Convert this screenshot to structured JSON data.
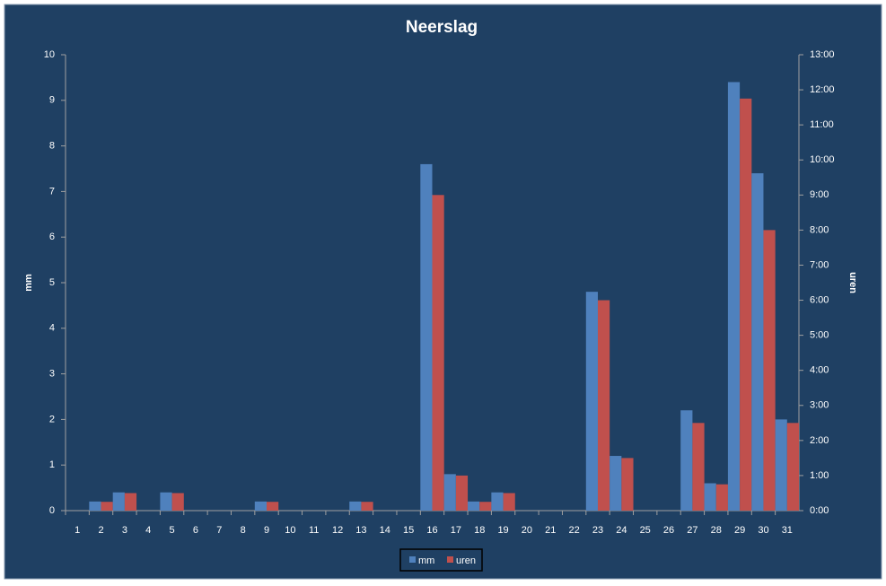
{
  "chart_data": {
    "type": "bar",
    "title": "Neerslag",
    "y_label": "mm",
    "y2_label": "uren",
    "categories": [
      "1",
      "2",
      "3",
      "4",
      "5",
      "6",
      "7",
      "8",
      "9",
      "10",
      "11",
      "12",
      "13",
      "14",
      "15",
      "16",
      "17",
      "18",
      "19",
      "20",
      "21",
      "22",
      "23",
      "24",
      "25",
      "26",
      "27",
      "28",
      "29",
      "30",
      "31"
    ],
    "series": [
      {
        "name": "mm",
        "color": "#4f81bd",
        "values": [
          0,
          0.2,
          0.4,
          0,
          0.4,
          0,
          0,
          0,
          0.2,
          0,
          0,
          0,
          0.2,
          0,
          0,
          7.6,
          0.8,
          0.2,
          0.4,
          0,
          0,
          0,
          4.8,
          1.2,
          0,
          0,
          2.2,
          0.6,
          9.4,
          7.4,
          2.0
        ]
      },
      {
        "name": "uren",
        "color": "#c0504d",
        "axis": "y2",
        "values": [
          0,
          0.25,
          0.5,
          0,
          0.5,
          0,
          0,
          0,
          0.25,
          0,
          0,
          0,
          0.25,
          0,
          0,
          9,
          1,
          0.25,
          0.5,
          0,
          0,
          0,
          6,
          1.5,
          0,
          0,
          2.5,
          0.75,
          11.75,
          8,
          2.5
        ]
      }
    ],
    "ylim": [
      0,
      10
    ],
    "yticks": [
      0,
      1,
      2,
      3,
      4,
      5,
      6,
      7,
      8,
      9,
      10
    ],
    "y2lim": [
      0,
      13
    ],
    "y2ticks": [
      {
        "value": 0,
        "label": "0:00"
      },
      {
        "value": 1,
        "label": "1:00"
      },
      {
        "value": 2,
        "label": "2:00"
      },
      {
        "value": 3,
        "label": "3:00"
      },
      {
        "value": 4,
        "label": "4:00"
      },
      {
        "value": 5,
        "label": "5:00"
      },
      {
        "value": 6,
        "label": "6:00"
      },
      {
        "value": 7,
        "label": "7:00"
      },
      {
        "value": 8,
        "label": "8:00"
      },
      {
        "value": 9,
        "label": "9:00"
      },
      {
        "value": 10,
        "label": "10:00"
      },
      {
        "value": 11,
        "label": "11:00"
      },
      {
        "value": 12,
        "label": "12:00"
      },
      {
        "value": 13,
        "label": "13:00"
      }
    ],
    "legend": "bottom"
  }
}
